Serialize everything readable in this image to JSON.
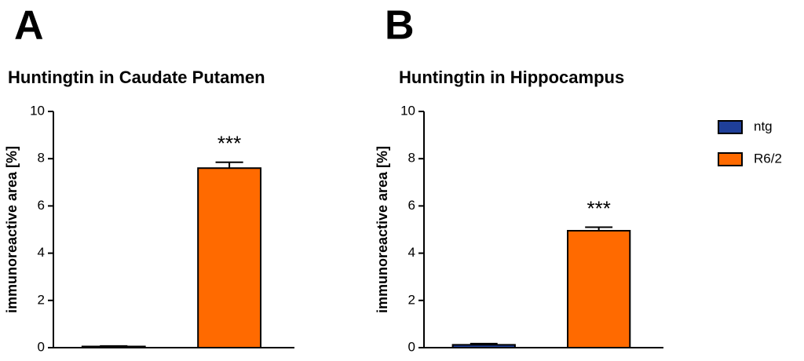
{
  "chart_data": [
    {
      "type": "bar",
      "panel": "A",
      "title": "Huntingtin in Caudate Putamen",
      "ylabel": "immunoreactive area [%]",
      "categories": [
        null
      ],
      "series": [
        {
          "name": "ntg",
          "color": "#1f3f99",
          "values": [
            0.05
          ],
          "errors": [
            0.02
          ]
        },
        {
          "name": "R6/2",
          "color": "#ff6a00",
          "values": [
            7.6
          ],
          "errors": [
            0.25
          ],
          "annotation": "***"
        }
      ],
      "ylim": [
        0,
        10
      ],
      "yticks": [
        0,
        2,
        4,
        6,
        8,
        10
      ]
    },
    {
      "type": "bar",
      "panel": "B",
      "title": "Huntingtin in Hippocampus",
      "ylabel": "immunoreactive area [%]",
      "categories": [
        null
      ],
      "series": [
        {
          "name": "ntg",
          "color": "#1f3f99",
          "values": [
            0.12
          ],
          "errors": [
            0.05
          ]
        },
        {
          "name": "R6/2",
          "color": "#ff6a00",
          "values": [
            4.95
          ],
          "errors": [
            0.15
          ],
          "annotation": "***"
        }
      ],
      "ylim": [
        0,
        10
      ],
      "yticks": [
        0,
        2,
        4,
        6,
        8,
        10
      ],
      "legend": "right"
    }
  ]
}
